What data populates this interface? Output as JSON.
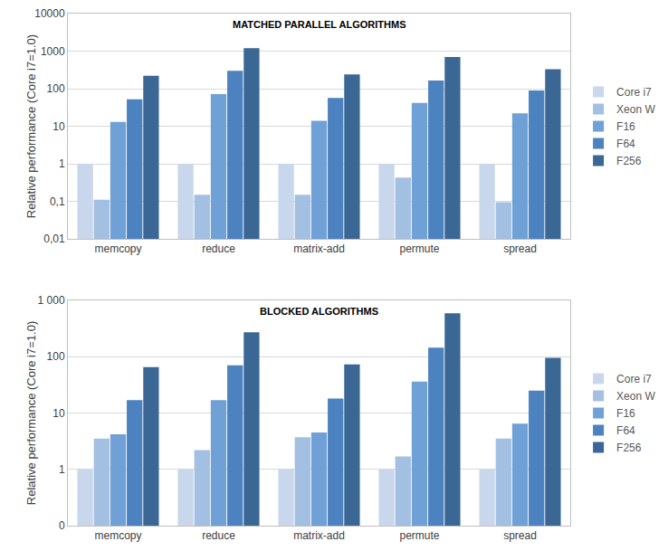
{
  "chart_data": [
    {
      "type": "bar",
      "title": "MATCHED PARALLEL ALGORITHMS",
      "ylabel": "Relative performance (Core i7=1.0)",
      "categories": [
        "memcopy",
        "reduce",
        "matrix-add",
        "permute",
        "spread"
      ],
      "series": [
        {
          "name": "Core i7",
          "color": "#c9d7ec",
          "values": [
            1,
            1,
            1,
            1,
            1
          ]
        },
        {
          "name": "Xeon W",
          "color": "#a3bfe2",
          "values": [
            0.11,
            0.15,
            0.15,
            0.43,
            0.095
          ]
        },
        {
          "name": "F16",
          "color": "#6fa0d6",
          "values": [
            13,
            72,
            14,
            42,
            22
          ]
        },
        {
          "name": "F64",
          "color": "#4c82bf",
          "values": [
            52,
            300,
            57,
            165,
            90
          ]
        },
        {
          "name": "F256",
          "color": "#3b6795",
          "values": [
            220,
            1200,
            240,
            700,
            330
          ]
        }
      ],
      "ylim": [
        0.01,
        10000
      ],
      "yticks": [
        {
          "value": 0.01,
          "label": "0,01"
        },
        {
          "value": 0.1,
          "label": "0,1"
        },
        1,
        10,
        100,
        1000,
        10000
      ],
      "log": "y",
      "grid": true,
      "legend": "right"
    },
    {
      "type": "bar",
      "title": "BLOCKED ALGORITHMS",
      "ylabel": "Relative performance (Core i7=1.0)",
      "categories": [
        "memcopy",
        "reduce",
        "matrix-add",
        "permute",
        "spread"
      ],
      "series": [
        {
          "name": "Core i7",
          "color": "#c9d7ec",
          "values": [
            1,
            1,
            1,
            1,
            1
          ]
        },
        {
          "name": "Xeon W",
          "color": "#a3bfe2",
          "values": [
            3.5,
            2.2,
            3.7,
            1.7,
            3.5
          ]
        },
        {
          "name": "F16",
          "color": "#6fa0d6",
          "values": [
            4.2,
            17,
            4.5,
            36,
            6.5
          ]
        },
        {
          "name": "F64",
          "color": "#4c82bf",
          "values": [
            17,
            70,
            18,
            145,
            25
          ]
        },
        {
          "name": "F256",
          "color": "#3b6795",
          "values": [
            65,
            270,
            73,
            590,
            95
          ]
        }
      ],
      "ylim": [
        0.1,
        1000
      ],
      "yticks": [
        {
          "value": 0.1,
          "label": "0"
        },
        1,
        10,
        100,
        {
          "value": 1000,
          "label": "1 000"
        }
      ],
      "log": "y",
      "grid": true,
      "legend": "right"
    }
  ]
}
